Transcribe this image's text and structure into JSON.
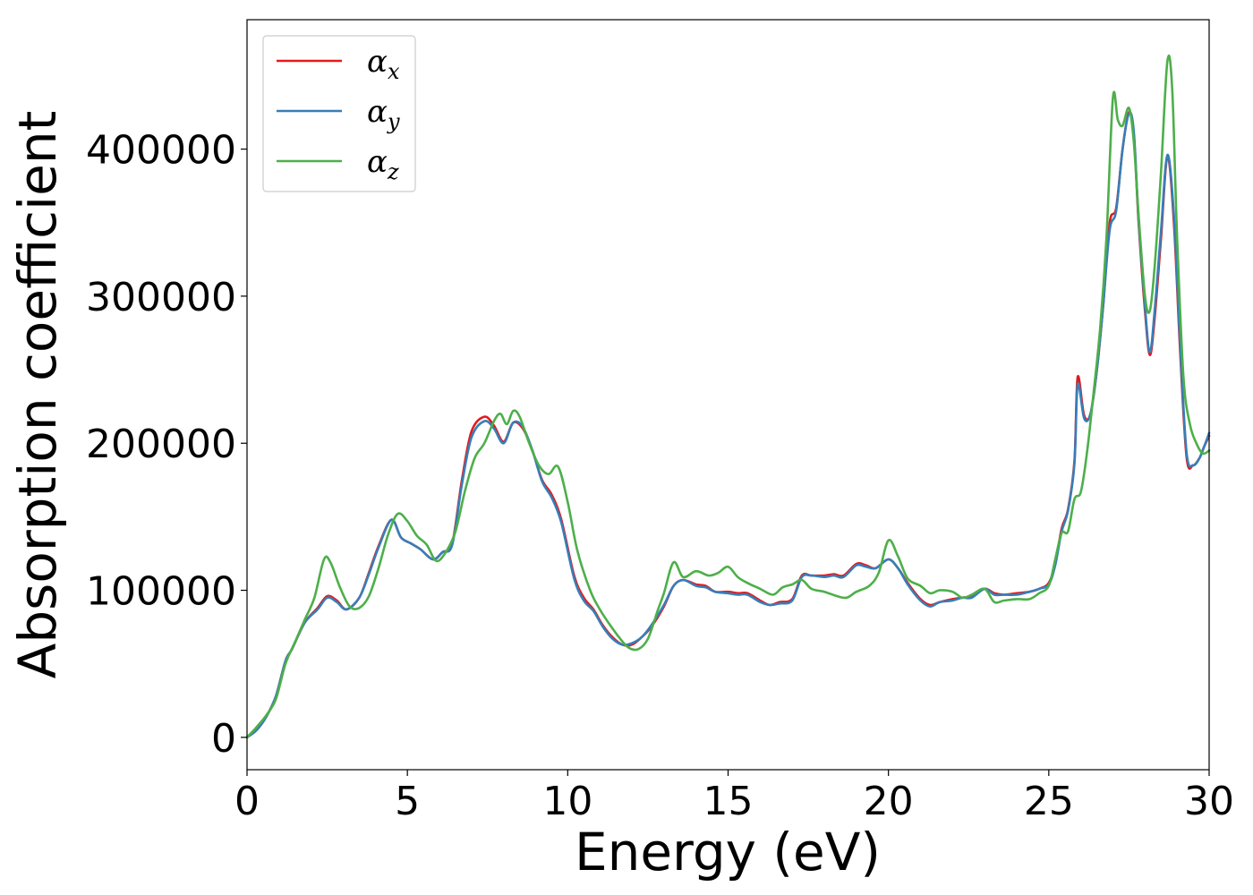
{
  "chart_data": {
    "type": "line",
    "title": "",
    "xlabel": "Energy (eV)",
    "ylabel": "Absorption coefficient",
    "xlim": [
      0,
      30
    ],
    "ylim": [
      -22000,
      488000
    ],
    "xticks": [
      0,
      5,
      10,
      15,
      20,
      25,
      30
    ],
    "yticks": [
      0,
      100000,
      200000,
      300000,
      400000
    ],
    "xtick_labels": [
      "0",
      "5",
      "10",
      "15",
      "20",
      "25",
      "30"
    ],
    "ytick_labels": [
      "0",
      "100000",
      "200000",
      "300000",
      "400000"
    ],
    "grid": false,
    "legend_position": "top-left",
    "series": [
      {
        "name": "αx",
        "symbol": "α",
        "subscript": "x",
        "color": "#e41a1c",
        "x": [
          0,
          0.3,
          0.6,
          0.9,
          1.2,
          1.4,
          1.8,
          2.2,
          2.5,
          2.8,
          3.1,
          3.5,
          3.8,
          4.1,
          4.5,
          4.8,
          5.1,
          5.4,
          5.8,
          6.1,
          6.4,
          6.7,
          7.0,
          7.4,
          7.7,
          8.0,
          8.3,
          8.6,
          8.9,
          9.2,
          9.5,
          9.8,
          10.2,
          10.5,
          10.8,
          11.1,
          11.4,
          11.7,
          12.0,
          12.3,
          12.6,
          13.0,
          13.3,
          13.6,
          14.0,
          14.3,
          14.6,
          15.0,
          15.3,
          15.6,
          16.0,
          16.3,
          16.6,
          17.0,
          17.3,
          17.6,
          18.0,
          18.3,
          18.6,
          19.0,
          19.3,
          19.6,
          20.0,
          20.3,
          20.6,
          21.0,
          21.3,
          21.6,
          22.0,
          22.3,
          22.6,
          23.0,
          23.3,
          23.6,
          24.0,
          24.4,
          24.7,
          25.0,
          25.2,
          25.4,
          25.6,
          25.8,
          25.9,
          26.1,
          26.3,
          26.5,
          26.7,
          26.9,
          27.1,
          27.3,
          27.5,
          27.65,
          27.8,
          28.0,
          28.15,
          28.3,
          28.5,
          28.7,
          28.9,
          29.1,
          29.3,
          29.5,
          29.7,
          29.85,
          30.0
        ],
        "y": [
          0,
          5000,
          14000,
          28000,
          52000,
          60000,
          78000,
          88000,
          96000,
          93000,
          87000,
          95000,
          112000,
          130000,
          148000,
          136000,
          132000,
          128000,
          121000,
          126000,
          132000,
          175000,
          208000,
          218000,
          212000,
          201000,
          214000,
          210000,
          195000,
          175000,
          165000,
          148000,
          110000,
          95000,
          87000,
          76000,
          68000,
          63000,
          63000,
          68000,
          75000,
          89000,
          103000,
          107000,
          104000,
          103000,
          99000,
          99000,
          98000,
          98000,
          93000,
          90000,
          92000,
          94000,
          110000,
          110000,
          110000,
          111000,
          110000,
          118000,
          117000,
          115000,
          121000,
          115000,
          105000,
          94000,
          90000,
          92000,
          94000,
          95000,
          96000,
          101000,
          98000,
          97000,
          98000,
          99000,
          101000,
          105000,
          118000,
          142000,
          155000,
          188000,
          245000,
          219000,
          220000,
          250000,
          295000,
          350000,
          360000,
          400000,
          425000,
          410000,
          350000,
          290000,
          260000,
          285000,
          340000,
          395000,
          350000,
          260000,
          190000,
          185000,
          190000,
          198000,
          205000
        ]
      },
      {
        "name": "αy",
        "symbol": "α",
        "subscript": "y",
        "color": "#377eb8",
        "x": [
          0,
          0.3,
          0.6,
          0.9,
          1.2,
          1.4,
          1.8,
          2.2,
          2.5,
          2.8,
          3.1,
          3.5,
          3.8,
          4.1,
          4.5,
          4.8,
          5.1,
          5.4,
          5.8,
          6.1,
          6.4,
          6.7,
          7.0,
          7.4,
          7.7,
          8.0,
          8.3,
          8.6,
          8.9,
          9.2,
          9.5,
          9.8,
          10.2,
          10.5,
          10.8,
          11.1,
          11.4,
          11.7,
          12.0,
          12.3,
          12.6,
          13.0,
          13.3,
          13.6,
          14.0,
          14.3,
          14.6,
          15.0,
          15.3,
          15.6,
          16.0,
          16.3,
          16.6,
          17.0,
          17.3,
          17.6,
          18.0,
          18.3,
          18.6,
          19.0,
          19.3,
          19.6,
          20.0,
          20.3,
          20.6,
          21.0,
          21.3,
          21.6,
          22.0,
          22.3,
          22.6,
          23.0,
          23.3,
          23.6,
          24.0,
          24.4,
          24.7,
          25.0,
          25.2,
          25.4,
          25.6,
          25.8,
          25.9,
          26.1,
          26.3,
          26.5,
          26.7,
          26.9,
          27.1,
          27.3,
          27.5,
          27.65,
          27.8,
          28.0,
          28.15,
          28.3,
          28.5,
          28.7,
          28.9,
          29.1,
          29.3,
          29.5,
          29.7,
          29.85,
          30.0
        ],
        "y": [
          0,
          5000,
          14000,
          28000,
          52000,
          60000,
          78000,
          87000,
          95000,
          92000,
          87000,
          95000,
          111000,
          129000,
          148000,
          136000,
          132000,
          128000,
          121000,
          126000,
          131000,
          172000,
          204000,
          215000,
          210000,
          200000,
          214000,
          211000,
          195000,
          174000,
          163000,
          146000,
          108000,
          93000,
          86000,
          75000,
          67000,
          63000,
          64000,
          68000,
          76000,
          90000,
          103000,
          107000,
          103000,
          102000,
          99000,
          98000,
          97000,
          97000,
          92000,
          90000,
          91000,
          93000,
          109000,
          110000,
          109000,
          110000,
          109000,
          117000,
          116000,
          115000,
          121000,
          115000,
          104000,
          93000,
          89000,
          92000,
          93000,
          95000,
          95000,
          101000,
          97000,
          97000,
          97000,
          99000,
          101000,
          104000,
          117000,
          140000,
          154000,
          186000,
          240000,
          217000,
          220000,
          250000,
          295000,
          345000,
          358000,
          400000,
          424000,
          412000,
          352000,
          293000,
          262000,
          290000,
          345000,
          396000,
          355000,
          265000,
          193000,
          185000,
          190000,
          198000,
          207000
        ]
      },
      {
        "name": "αz",
        "symbol": "α",
        "subscript": "z",
        "color": "#4daf4a",
        "x": [
          0,
          0.3,
          0.6,
          0.9,
          1.2,
          1.5,
          1.8,
          2.1,
          2.4,
          2.6,
          2.9,
          3.2,
          3.5,
          3.8,
          4.1,
          4.4,
          4.7,
          5.0,
          5.3,
          5.6,
          5.9,
          6.2,
          6.5,
          6.8,
          7.1,
          7.4,
          7.7,
          7.9,
          8.1,
          8.3,
          8.5,
          8.8,
          9.1,
          9.4,
          9.7,
          10.0,
          10.3,
          10.7,
          11.0,
          11.3,
          11.6,
          11.9,
          12.2,
          12.5,
          12.8,
          13.0,
          13.3,
          13.6,
          14.0,
          14.4,
          14.7,
          15.0,
          15.3,
          15.6,
          16.0,
          16.4,
          16.7,
          17.0,
          17.3,
          17.6,
          18.0,
          18.4,
          18.7,
          19.0,
          19.4,
          19.7,
          20.0,
          20.3,
          20.6,
          21.0,
          21.3,
          21.6,
          22.0,
          22.3,
          22.6,
          23.0,
          23.3,
          23.6,
          24.0,
          24.4,
          24.7,
          25.0,
          25.2,
          25.4,
          25.6,
          25.8,
          26.0,
          26.2,
          26.4,
          26.6,
          26.8,
          27.0,
          27.15,
          27.3,
          27.5,
          27.65,
          27.8,
          28.0,
          28.15,
          28.3,
          28.5,
          28.7,
          28.85,
          29.0,
          29.2,
          29.4,
          29.6,
          29.8,
          30.0
        ],
        "y": [
          0,
          7000,
          15000,
          26000,
          50000,
          65000,
          80000,
          95000,
          121000,
          119000,
          102000,
          89000,
          88000,
          96000,
          115000,
          138000,
          152000,
          147000,
          137000,
          131000,
          120000,
          126000,
          140000,
          168000,
          190000,
          200000,
          215000,
          220000,
          213000,
          222000,
          218000,
          200000,
          185000,
          179000,
          184000,
          160000,
          127000,
          100000,
          87000,
          77000,
          68000,
          61000,
          60000,
          67000,
          86000,
          98000,
          119000,
          109000,
          113000,
          110000,
          112000,
          116000,
          109000,
          105000,
          101000,
          97000,
          102000,
          104000,
          107000,
          101000,
          99000,
          96000,
          95000,
          99000,
          103000,
          112000,
          134000,
          123000,
          108000,
          103000,
          98000,
          100000,
          99000,
          95000,
          97000,
          101000,
          92000,
          93000,
          94000,
          94000,
          98000,
          103000,
          121000,
          139000,
          140000,
          162000,
          167000,
          195000,
          235000,
          278000,
          340000,
          435000,
          420000,
          416000,
          428000,
          405000,
          355000,
          300000,
          290000,
          320000,
          385000,
          460000,
          440000,
          340000,
          245000,
          213000,
          200000,
          193000,
          195000
        ]
      }
    ]
  }
}
